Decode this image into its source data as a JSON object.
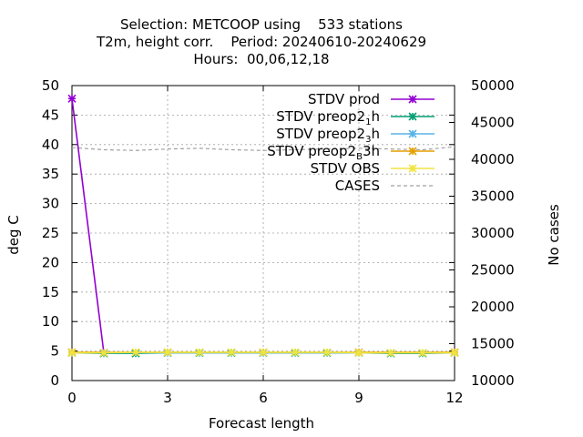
{
  "chart_data": {
    "type": "line",
    "title": [
      "Selection: METCOOP using    533 stations",
      "T2m, height corr.    Period: 20240610-20240629",
      "Hours:  00,06,12,18"
    ],
    "xlabel": "Forecast length",
    "ylabel": "deg C",
    "y2label": "No cases",
    "xlim": [
      0,
      12
    ],
    "ylim": [
      0,
      50
    ],
    "y2lim": [
      10000,
      50000
    ],
    "xticks": [
      0,
      3,
      6,
      9,
      12
    ],
    "yticks": [
      0,
      5,
      10,
      15,
      20,
      25,
      30,
      35,
      40,
      45,
      50
    ],
    "y2ticks": [
      10000,
      15000,
      20000,
      25000,
      30000,
      35000,
      40000,
      45000,
      50000
    ],
    "grid": true,
    "legend_position": "top-right",
    "series": [
      {
        "name": "STDV prod",
        "legend_parts": [
          {
            "t": "STDV prod"
          }
        ],
        "color": "#9400d3",
        "marker": "x",
        "axis": "y",
        "x": [
          0,
          1
        ],
        "values": [
          47.8,
          4.7
        ]
      },
      {
        "name": "STDV preop2_1h",
        "legend_parts": [
          {
            "t": "STDV preop2"
          },
          {
            "t": "1",
            "sub": true
          },
          {
            "t": "h"
          }
        ],
        "color": "#009e73",
        "marker": "x",
        "axis": "y",
        "x": [
          0,
          1,
          2,
          3,
          4,
          5,
          6,
          7,
          8,
          9,
          10,
          11,
          12
        ],
        "values": [
          4.7,
          4.6,
          4.6,
          4.7,
          4.7,
          4.7,
          4.7,
          4.7,
          4.7,
          4.7,
          4.6,
          4.6,
          4.7
        ]
      },
      {
        "name": "STDV preop2_3h",
        "legend_parts": [
          {
            "t": "STDV preop2"
          },
          {
            "t": "3",
            "sub": true
          },
          {
            "t": "h"
          }
        ],
        "color": "#56b4e9",
        "marker": "x",
        "axis": "y",
        "x": [
          0,
          3,
          6,
          9,
          12
        ],
        "values": [
          4.7,
          4.7,
          4.7,
          4.7,
          4.7
        ]
      },
      {
        "name": "STDV preop2_B3h",
        "legend_parts": [
          {
            "t": "STDV preop2"
          },
          {
            "t": "B",
            "sub": true
          },
          {
            "t": "3h"
          }
        ],
        "color": "#e69f00",
        "marker": "x",
        "axis": "y",
        "x": [
          0,
          3,
          6,
          9,
          12
        ],
        "values": [
          4.8,
          4.8,
          4.8,
          4.8,
          4.8
        ]
      },
      {
        "name": "STDV OBS",
        "legend_parts": [
          {
            "t": "STDV OBS"
          }
        ],
        "color": "#f0e442",
        "marker": "x",
        "axis": "y",
        "x": [
          0,
          1,
          2,
          3,
          4,
          5,
          6,
          7,
          8,
          9,
          10,
          11,
          12
        ],
        "values": [
          4.7,
          4.7,
          4.8,
          4.8,
          4.8,
          4.8,
          4.8,
          4.8,
          4.8,
          4.7,
          4.7,
          4.7,
          4.7
        ]
      },
      {
        "name": "CASES",
        "legend_parts": [
          {
            "t": "CASES"
          }
        ],
        "color": "#a0a0a0",
        "marker": "none",
        "dashed": true,
        "axis": "y2",
        "x": [
          0,
          1,
          2,
          3,
          4,
          5,
          6,
          7,
          8,
          9,
          10,
          11,
          12
        ],
        "values": [
          41600,
          41300,
          41200,
          41400,
          41500,
          41300,
          41200,
          41300,
          41400,
          41500,
          41400,
          41300,
          41700
        ]
      }
    ]
  }
}
